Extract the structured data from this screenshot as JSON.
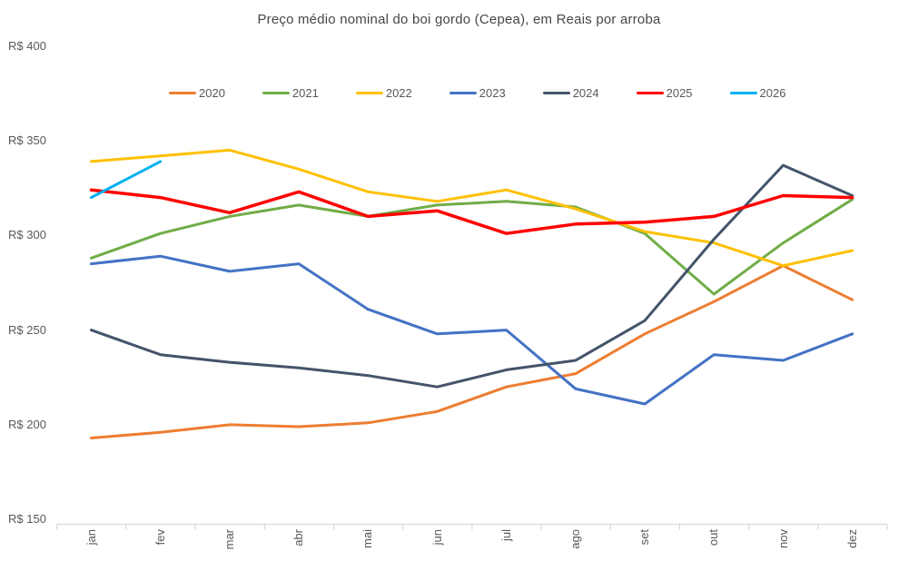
{
  "title": "Preço médio nominal do boi gordo (Cepea), em Reais por arroba",
  "colors": {
    "axis_line": "#D9D9D9",
    "axis_text": "#595959",
    "title_text": "#474747"
  },
  "chart_data": {
    "type": "line",
    "title": "Preço médio nominal do boi gordo (Cepea), em Reais por arroba",
    "xlabel": "",
    "ylabel": "Reais por arroba",
    "x_categories": [
      "jan",
      "fev",
      "mar",
      "abr",
      "mai",
      "jun",
      "jul",
      "ago",
      "set",
      "out",
      "nov",
      "dez"
    ],
    "y_tick_labels": [
      "R$ 400",
      "R$ 350",
      "R$ 300",
      "R$ 250",
      "R$ 200",
      "R$ 150"
    ],
    "y_tick_values": [
      400,
      350,
      300,
      250,
      200,
      150
    ],
    "ylim": [
      150,
      400
    ],
    "grid": false,
    "legend_position": "top",
    "series": [
      {
        "name": "2020",
        "color": "#ED7D31",
        "values": [
          193,
          196,
          200,
          199,
          201,
          207,
          220,
          227,
          248,
          265,
          284,
          266
        ]
      },
      {
        "name": "2021",
        "color": "#70AD47",
        "values": [
          288,
          301,
          310,
          316,
          310,
          316,
          318,
          315,
          301,
          269,
          296,
          319
        ]
      },
      {
        "name": "2022",
        "color": "#FFC000",
        "values": [
          339,
          342,
          345,
          335,
          323,
          318,
          324,
          314,
          302,
          296,
          284,
          292
        ]
      },
      {
        "name": "2023",
        "color": "#4472C4",
        "values": [
          285,
          289,
          281,
          285,
          261,
          248,
          250,
          219,
          211,
          237,
          234,
          248
        ]
      },
      {
        "name": "2024",
        "color": "#44546A",
        "values": [
          250,
          237,
          233,
          230,
          226,
          220,
          229,
          234,
          255,
          298,
          337,
          321
        ]
      },
      {
        "name": "2025",
        "color": "#FF0000",
        "values": [
          324,
          320,
          312,
          323,
          310,
          313,
          301,
          306,
          307,
          310,
          321,
          320
        ]
      },
      {
        "name": "2026",
        "color": "#00B0F0",
        "values": [
          320,
          339,
          null,
          null,
          null,
          null,
          null,
          null,
          null,
          null,
          null,
          null
        ]
      }
    ]
  }
}
